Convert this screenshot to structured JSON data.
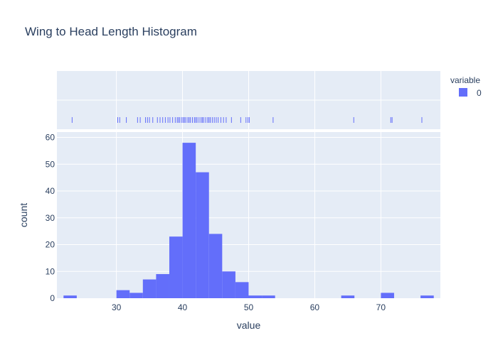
{
  "chart_data": {
    "type": "bar",
    "title": "Wing to Head Length Histogram",
    "xlabel": "value",
    "ylabel": "count",
    "xlim": [
      21,
      79
    ],
    "ylim": [
      0,
      62
    ],
    "x_ticks": [
      30,
      40,
      50,
      60,
      70
    ],
    "y_ticks": [
      0,
      10,
      20,
      30,
      40,
      50,
      60
    ],
    "grid": true,
    "legend": {
      "title": "variable",
      "placement": "top-right",
      "entries": [
        "0"
      ]
    },
    "colors": {
      "bar": "#636efa",
      "plot_bg": "#e5ecf6",
      "grid": "#ffffff",
      "text": "#2a3f5f"
    },
    "bins": [
      {
        "start": 22,
        "end": 24,
        "count": 1
      },
      {
        "start": 24,
        "end": 26,
        "count": 0
      },
      {
        "start": 26,
        "end": 28,
        "count": 0
      },
      {
        "start": 28,
        "end": 30,
        "count": 0
      },
      {
        "start": 30,
        "end": 32,
        "count": 3
      },
      {
        "start": 32,
        "end": 34,
        "count": 2
      },
      {
        "start": 34,
        "end": 36,
        "count": 7
      },
      {
        "start": 36,
        "end": 38,
        "count": 9
      },
      {
        "start": 38,
        "end": 40,
        "count": 23
      },
      {
        "start": 40,
        "end": 42,
        "count": 58
      },
      {
        "start": 42,
        "end": 44,
        "count": 47
      },
      {
        "start": 44,
        "end": 46,
        "count": 24
      },
      {
        "start": 46,
        "end": 48,
        "count": 10
      },
      {
        "start": 48,
        "end": 50,
        "count": 6
      },
      {
        "start": 50,
        "end": 52,
        "count": 1
      },
      {
        "start": 52,
        "end": 54,
        "count": 1
      },
      {
        "start": 54,
        "end": 56,
        "count": 0
      },
      {
        "start": 56,
        "end": 58,
        "count": 0
      },
      {
        "start": 58,
        "end": 60,
        "count": 0
      },
      {
        "start": 60,
        "end": 62,
        "count": 0
      },
      {
        "start": 62,
        "end": 64,
        "count": 0
      },
      {
        "start": 64,
        "end": 66,
        "count": 1
      },
      {
        "start": 66,
        "end": 68,
        "count": 0
      },
      {
        "start": 68,
        "end": 70,
        "count": 0
      },
      {
        "start": 70,
        "end": 72,
        "count": 2
      },
      {
        "start": 72,
        "end": 74,
        "count": 0
      },
      {
        "start": 74,
        "end": 76,
        "count": 0
      },
      {
        "start": 76,
        "end": 78,
        "count": 1
      }
    ],
    "rug_values": [
      23.3,
      30.2,
      30.5,
      31.5,
      33.2,
      33.6,
      34.4,
      34.7,
      35.0,
      35.5,
      36.2,
      36.6,
      37.0,
      37.4,
      37.8,
      38.1,
      38.5,
      38.9,
      39.2,
      39.4,
      39.6,
      39.9,
      40.1,
      40.3,
      40.5,
      40.8,
      41.0,
      41.2,
      41.5,
      41.8,
      42.0,
      42.2,
      42.5,
      42.8,
      43.0,
      43.2,
      43.5,
      43.8,
      44.0,
      44.2,
      44.5,
      44.8,
      45.1,
      45.4,
      45.8,
      46.2,
      46.6,
      47.4,
      48.8,
      49.6,
      49.9,
      50.1,
      53.7,
      65.9,
      71.5,
      71.7,
      76.2
    ]
  }
}
